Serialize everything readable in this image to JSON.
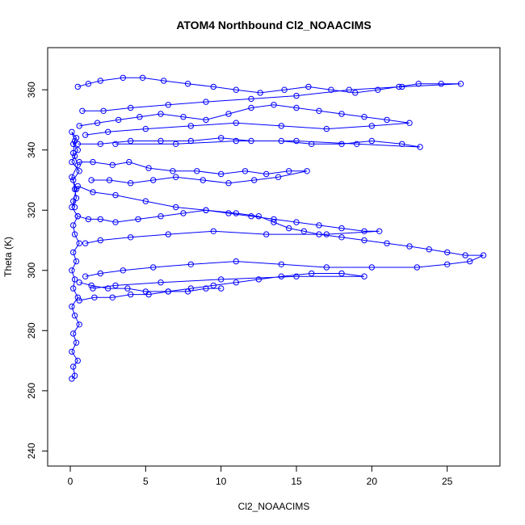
{
  "chart_data": {
    "type": "scatter",
    "title": "ATOM4 Northbound Cl2_NOAACIMS",
    "xlabel": "Cl2_NOAACIMS",
    "ylabel": "Theta (K)",
    "xlim": [
      -1.5,
      28.5
    ],
    "ylim": [
      235,
      374
    ],
    "xticks": [
      0,
      5,
      10,
      15,
      20,
      25
    ],
    "yticks": [
      240,
      260,
      280,
      300,
      320,
      340,
      360
    ],
    "marker": "open-circle",
    "connected": true,
    "grid": false,
    "legend": "none",
    "color": "#0000ff",
    "series": [
      {
        "x": [
          0.1,
          0.3,
          0.2,
          0.5,
          0.1,
          0.4,
          0.2,
          0.6,
          0.3,
          0.1,
          0.5,
          0.2,
          0.3,
          0.1,
          0.4,
          0.2,
          0.6,
          0.3,
          0.2,
          0.5,
          0.1,
          0.4,
          0.3,
          0.2,
          0.6,
          0.1,
          0.3,
          0.5,
          0.2,
          0.4,
          0.1,
          0.3,
          0.2,
          0.5,
          0.1,
          0.4,
          0.2,
          0.3
        ],
        "y": [
          264,
          265,
          268,
          270,
          273,
          276,
          279,
          282,
          285,
          288,
          291,
          294,
          297,
          300,
          303,
          306,
          309,
          312,
          315,
          318,
          321,
          324,
          327,
          330,
          333,
          336,
          338,
          340,
          342,
          344,
          346,
          343,
          339,
          335,
          331,
          327,
          323,
          321
        ]
      },
      {
        "x": [
          0.5,
          1.2,
          2.0,
          3.5,
          4.8,
          6.2,
          7.8,
          9.5,
          11.0,
          12.6,
          14.2,
          15.8,
          17.3,
          18.9,
          20.4,
          21.8,
          23.1,
          24.6,
          25.9,
          22.0,
          18.5,
          15.0,
          12.0,
          9.0,
          6.5,
          4.0,
          2.2,
          0.8
        ],
        "y": [
          361,
          362,
          363,
          364,
          364,
          363,
          362,
          361,
          360,
          359,
          360,
          361,
          360,
          359,
          360,
          361,
          362,
          362,
          362,
          361,
          360,
          358,
          357,
          356,
          355,
          354,
          353,
          353
        ]
      },
      {
        "x": [
          0.6,
          1.8,
          3.2,
          4.6,
          6.0,
          7.5,
          9.0,
          10.5,
          12.0,
          13.5,
          15.0,
          16.5,
          18.0,
          19.5,
          21.0,
          22.5,
          20.0,
          17.0,
          14.0,
          11.0,
          8.0,
          5.0,
          2.5,
          1.0
        ],
        "y": [
          348,
          349,
          350,
          351,
          352,
          351,
          350,
          352,
          354,
          355,
          354,
          353,
          352,
          351,
          350,
          349,
          348,
          347,
          348,
          349,
          348,
          347,
          346,
          345
        ]
      },
      {
        "x": [
          0.5,
          2.0,
          4.0,
          6.0,
          8.0,
          10.0,
          12.0,
          14.0,
          16.0,
          18.0,
          20.0,
          22.0,
          23.2,
          19.0,
          15.0,
          11.0,
          7.0,
          3.0
        ],
        "y": [
          342,
          342,
          343,
          343,
          343,
          344,
          343,
          343,
          342,
          342,
          343,
          342,
          341,
          342,
          343,
          343,
          342,
          342
        ]
      },
      {
        "x": [
          0.6,
          1.5,
          2.8,
          3.9,
          5.2,
          6.8,
          8.4,
          10.0,
          11.6,
          13.0,
          14.5,
          15.7,
          13.8,
          12.2,
          10.5,
          8.8,
          7.0,
          5.5,
          4.0,
          2.6,
          1.4
        ],
        "y": [
          336,
          336,
          335,
          336,
          334,
          333,
          333,
          332,
          333,
          332,
          333,
          333,
          331,
          330,
          329,
          330,
          331,
          330,
          329,
          330,
          330
        ]
      },
      {
        "x": [
          0.5,
          1.5,
          3.0,
          5.0,
          7.0,
          9.0,
          11.0,
          12.5,
          13.5,
          14.5,
          15.5,
          16.5,
          18.0,
          19.5,
          21.0,
          22.5,
          23.8,
          25.0,
          26.2,
          27.4,
          26.5,
          25.0,
          23.0,
          20.0,
          17.0,
          14.0,
          11.0,
          8.0,
          5.5,
          3.5,
          2.0,
          1.0
        ],
        "y": [
          328,
          326,
          325,
          323,
          321,
          320,
          319,
          318,
          316,
          314,
          313,
          312,
          311,
          310,
          309,
          308,
          307,
          306,
          305,
          305,
          303,
          302,
          301,
          301,
          301,
          302,
          303,
          302,
          301,
          300,
          299,
          298
        ]
      },
      {
        "x": [
          0.5,
          1.2,
          2.0,
          3.0,
          4.5,
          6.0,
          7.5,
          9.0,
          10.5,
          12.0,
          13.5,
          15.0,
          16.5,
          18.0,
          19.5,
          20.5,
          17.0,
          13.0,
          9.5,
          6.5,
          4.0,
          2.0,
          1.0
        ],
        "y": [
          318,
          317,
          317,
          316,
          317,
          318,
          319,
          320,
          319,
          318,
          317,
          316,
          315,
          314,
          313,
          313,
          312,
          312,
          313,
          312,
          311,
          310,
          309
        ]
      },
      {
        "x": [
          0.6,
          1.4,
          2.5,
          3.8,
          5.0,
          6.5,
          8.0,
          9.5,
          11.0,
          12.5,
          14.0,
          16.0,
          18.0,
          19.5,
          15.0,
          10.0,
          6.0,
          3.0,
          1.5
        ],
        "y": [
          296,
          295,
          294,
          294,
          293,
          293,
          294,
          295,
          296,
          297,
          298,
          299,
          299,
          298,
          298,
          297,
          296,
          295,
          294
        ]
      },
      {
        "x": [
          0.6,
          1.6,
          2.8,
          4.0,
          5.2,
          6.5,
          7.8,
          9.0,
          10.0
        ],
        "y": [
          290,
          291,
          291,
          292,
          292,
          293,
          293,
          294,
          294
        ]
      }
    ]
  }
}
